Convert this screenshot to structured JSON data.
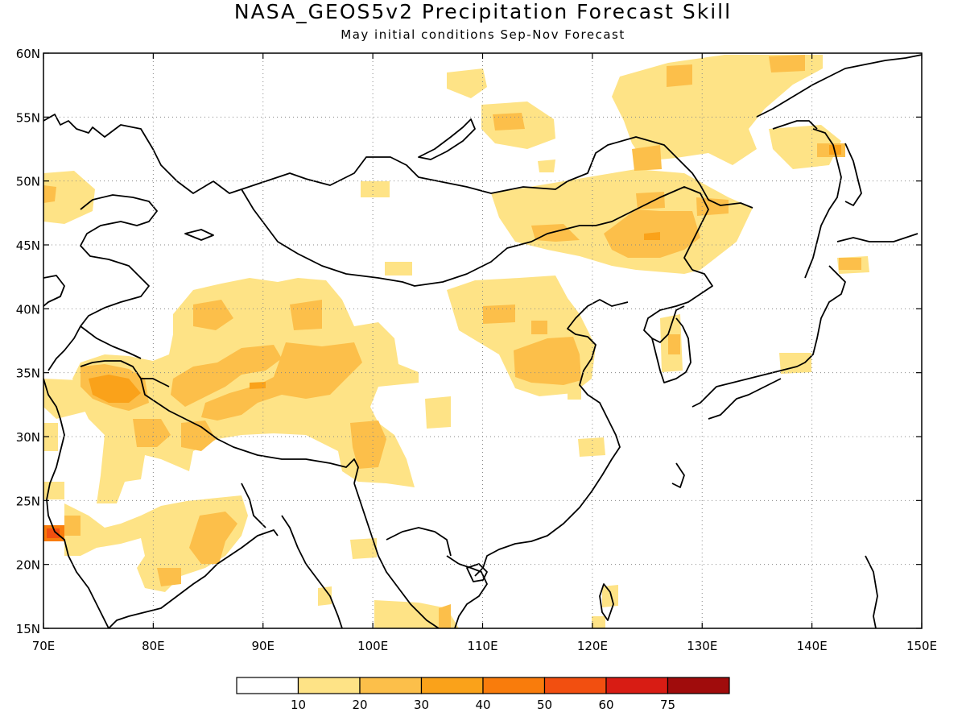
{
  "header": {
    "title": "NASA_GEOS5v2 Precipitation Forecast Skill",
    "subtitle": "May initial conditions  Sep-Nov Forecast"
  },
  "map": {
    "lon_range": [
      70,
      150
    ],
    "lat_range": [
      15,
      60
    ],
    "lon_ticks": [
      "70E",
      "80E",
      "90E",
      "100E",
      "110E",
      "120E",
      "130E",
      "140E",
      "150E"
    ],
    "lat_ticks": [
      "15N",
      "20N",
      "25N",
      "30N",
      "35N",
      "40N",
      "45N",
      "50N",
      "55N",
      "60N"
    ],
    "grid": true
  },
  "colorbar": {
    "labels": [
      "10",
      "20",
      "30",
      "40",
      "50",
      "60",
      "75"
    ],
    "colors": [
      "#ffffff",
      "#fee386",
      "#fcbf4a",
      "#faa21a",
      "#f97c0c",
      "#f24f10",
      "#d81c14",
      "#a00c0c"
    ]
  }
}
